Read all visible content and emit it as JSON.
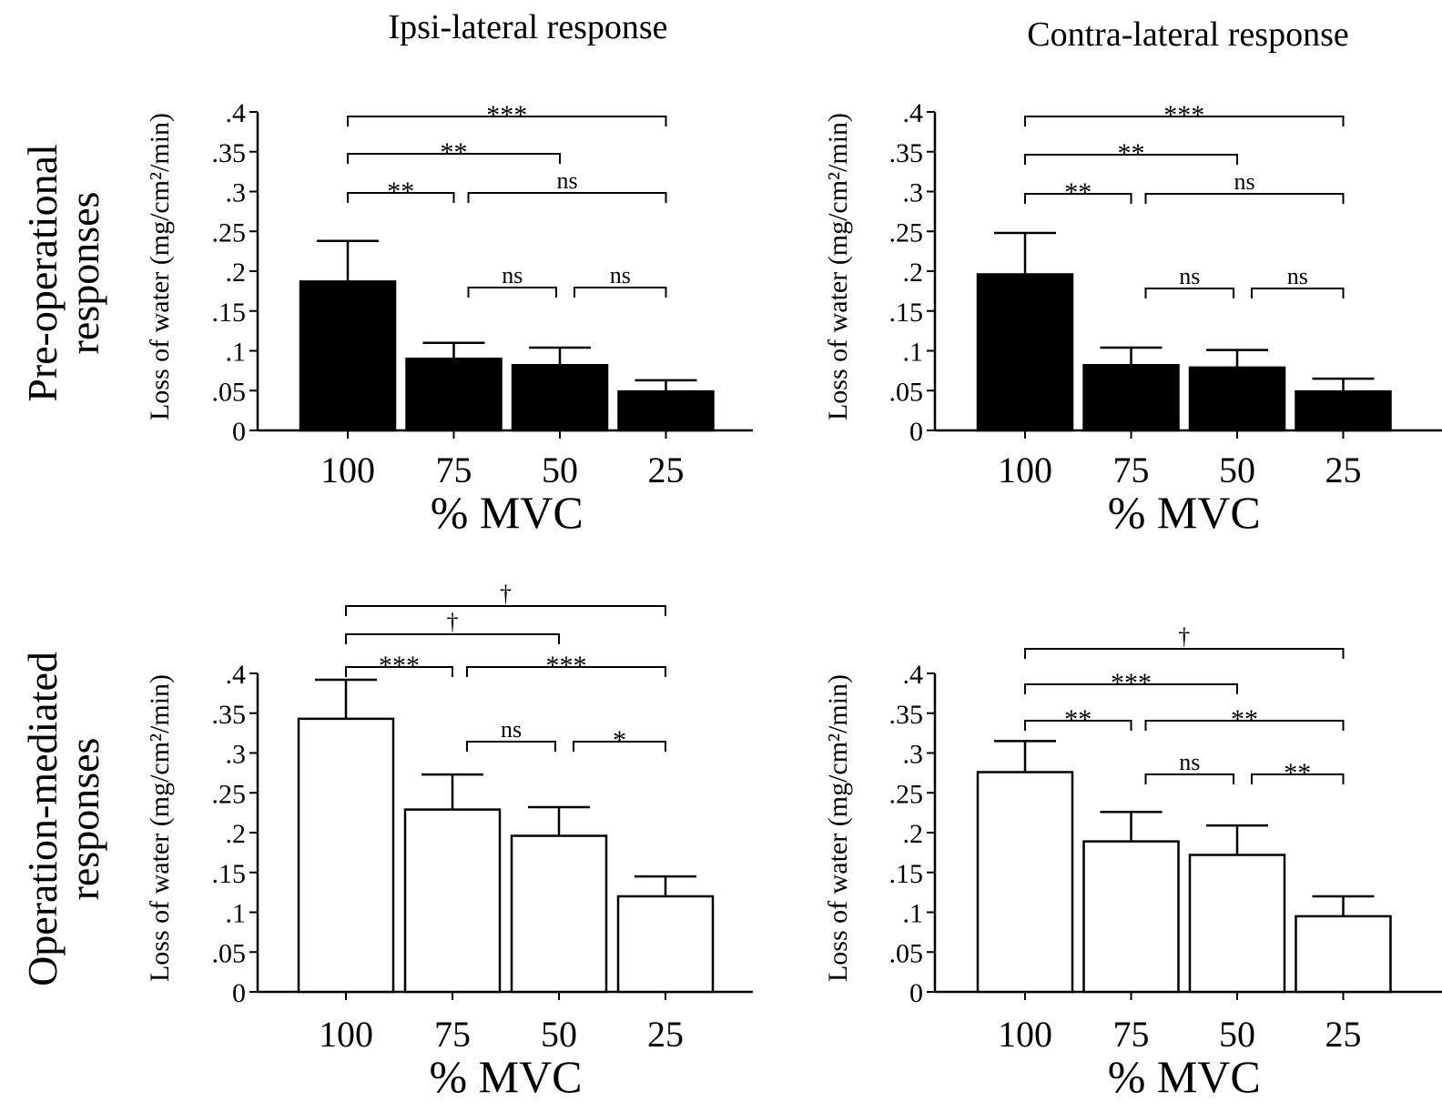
{
  "column_titles": [
    "Ipsi-lateral response",
    "Contra-lateral response"
  ],
  "row_titles": [
    [
      "Pre-operational",
      "responses"
    ],
    [
      "Operation-mediated",
      "responses"
    ]
  ],
  "chart_data": [
    {
      "type": "bar",
      "panel": "pre-operational ipsi-lateral",
      "title": "",
      "xlabel": "% MVC",
      "ylabel": "Loss of water (mg/cm²/min)",
      "categories": [
        "100",
        "75",
        "50",
        "25"
      ],
      "values": [
        0.187,
        0.09,
        0.082,
        0.049
      ],
      "error_upper": [
        0.238,
        0.11,
        0.104,
        0.063
      ],
      "bar_fill": "black",
      "ylim": [
        0,
        0.4
      ],
      "yticks": [
        "0",
        ".05",
        ".1",
        ".15",
        ".2",
        ".25",
        ".3",
        ".35",
        ".4"
      ],
      "comparisons": [
        {
          "from": 0,
          "to": 3,
          "label": "***"
        },
        {
          "from": 0,
          "to": 2,
          "label": "**"
        },
        {
          "from": 0,
          "to": 1,
          "label": "**"
        },
        {
          "from": 1,
          "to": 3,
          "label": "ns"
        },
        {
          "from": 1,
          "to": 2,
          "label": "ns"
        },
        {
          "from": 2,
          "to": 3,
          "label": "ns"
        }
      ]
    },
    {
      "type": "bar",
      "panel": "pre-operational contra-lateral",
      "title": "",
      "xlabel": "% MVC",
      "ylabel": "Loss of water (mg/cm²/min)",
      "categories": [
        "100",
        "75",
        "50",
        "25"
      ],
      "values": [
        0.196,
        0.082,
        0.079,
        0.049
      ],
      "error_upper": [
        0.248,
        0.104,
        0.101,
        0.065
      ],
      "bar_fill": "black",
      "ylim": [
        0,
        0.4
      ],
      "yticks": [
        "0",
        ".05",
        ".1",
        ".15",
        ".2",
        ".25",
        ".3",
        ".35",
        ".4"
      ],
      "comparisons": [
        {
          "from": 0,
          "to": 3,
          "label": "***"
        },
        {
          "from": 0,
          "to": 2,
          "label": "**"
        },
        {
          "from": 0,
          "to": 1,
          "label": "**"
        },
        {
          "from": 1,
          "to": 3,
          "label": "ns"
        },
        {
          "from": 1,
          "to": 2,
          "label": "ns"
        },
        {
          "from": 2,
          "to": 3,
          "label": "ns"
        }
      ]
    },
    {
      "type": "bar",
      "panel": "operation-mediated ipsi-lateral",
      "title": "",
      "xlabel": "% MVC",
      "ylabel": "Loss of water (mg/cm²/min)",
      "categories": [
        "100",
        "75",
        "50",
        "25"
      ],
      "values": [
        0.343,
        0.229,
        0.196,
        0.12
      ],
      "error_upper": [
        0.392,
        0.273,
        0.232,
        0.145
      ],
      "bar_fill": "white",
      "ylim": [
        0,
        0.4
      ],
      "yticks": [
        "0",
        ".05",
        ".1",
        ".15",
        ".2",
        ".25",
        ".3",
        ".35",
        ".4"
      ],
      "comparisons": [
        {
          "from": 0,
          "to": 3,
          "label": "†"
        },
        {
          "from": 0,
          "to": 2,
          "label": "†"
        },
        {
          "from": 0,
          "to": 1,
          "label": "***"
        },
        {
          "from": 1,
          "to": 3,
          "label": "***"
        },
        {
          "from": 1,
          "to": 2,
          "label": "ns"
        },
        {
          "from": 2,
          "to": 3,
          "label": "*"
        }
      ]
    },
    {
      "type": "bar",
      "panel": "operation-mediated contra-lateral",
      "title": "",
      "xlabel": "% MVC",
      "ylabel": "Loss of water (mg/cm²/min)",
      "categories": [
        "100",
        "75",
        "50",
        "25"
      ],
      "values": [
        0.276,
        0.189,
        0.172,
        0.095
      ],
      "error_upper": [
        0.315,
        0.226,
        0.209,
        0.12
      ],
      "bar_fill": "white",
      "ylim": [
        0,
        0.4
      ],
      "yticks": [
        "0",
        ".05",
        ".1",
        ".15",
        ".2",
        ".25",
        ".3",
        ".35",
        ".4"
      ],
      "comparisons": [
        {
          "from": 0,
          "to": 3,
          "label": "†"
        },
        {
          "from": 0,
          "to": 2,
          "label": "***"
        },
        {
          "from": 0,
          "to": 1,
          "label": "**"
        },
        {
          "from": 1,
          "to": 3,
          "label": "**"
        },
        {
          "from": 1,
          "to": 2,
          "label": "ns"
        },
        {
          "from": 2,
          "to": 3,
          "label": "**"
        }
      ]
    }
  ]
}
